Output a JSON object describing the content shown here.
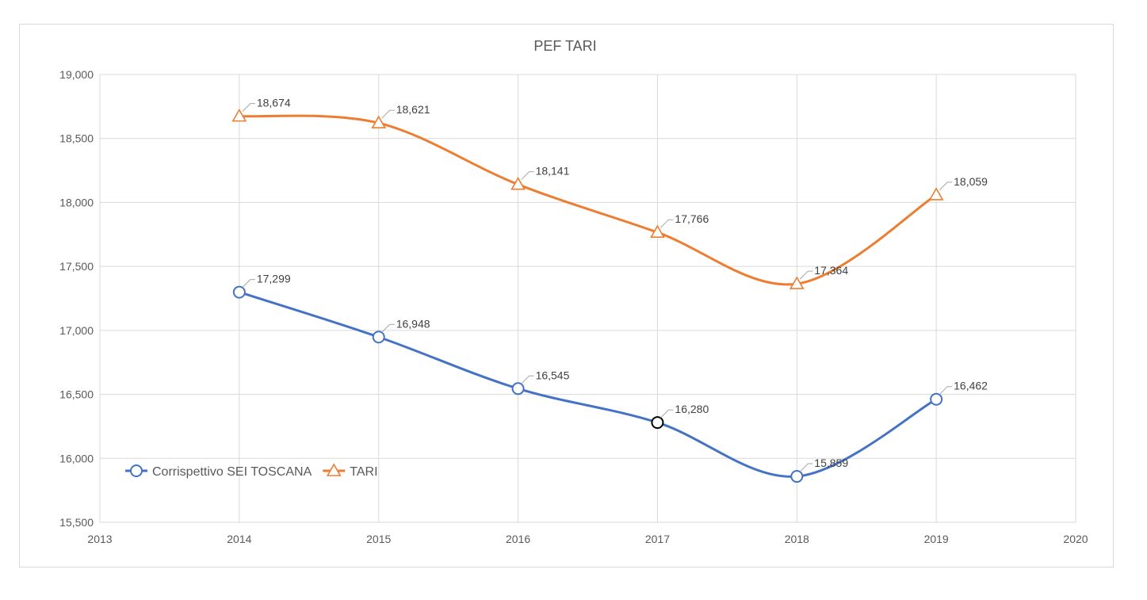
{
  "chart_data": {
    "type": "line",
    "title": "PEF TARI",
    "xlabel": "",
    "ylabel": "",
    "xlim": [
      2013,
      2020
    ],
    "ylim": [
      15500,
      19000
    ],
    "x_ticks": [
      "2013",
      "2014",
      "2015",
      "2016",
      "2017",
      "2018",
      "2019",
      "2020"
    ],
    "y_ticks": [
      "15,500",
      "16,000",
      "16,500",
      "17,000",
      "17,500",
      "18,000",
      "18,500",
      "19,000"
    ],
    "grid": true,
    "smooth": true,
    "legend_position": "lower-left",
    "x": [
      2014,
      2015,
      2016,
      2017,
      2018,
      2019
    ],
    "series": [
      {
        "name": "Corrispettivo SEI TOSCANA",
        "color": "#4472c4",
        "marker": "circle",
        "values": [
          17299,
          16948,
          16545,
          16280,
          15859,
          16462
        ],
        "labels": [
          "17,299",
          "16,948",
          "16,545",
          "16,280",
          "15,859",
          "16,462"
        ]
      },
      {
        "name": "TARI",
        "color": "#ed7d31",
        "marker": "triangle",
        "values": [
          18674,
          18621,
          18141,
          17766,
          17364,
          18059
        ],
        "labels": [
          "18,674",
          "18,621",
          "18,141",
          "17,766",
          "17,364",
          "18,059"
        ]
      }
    ]
  }
}
